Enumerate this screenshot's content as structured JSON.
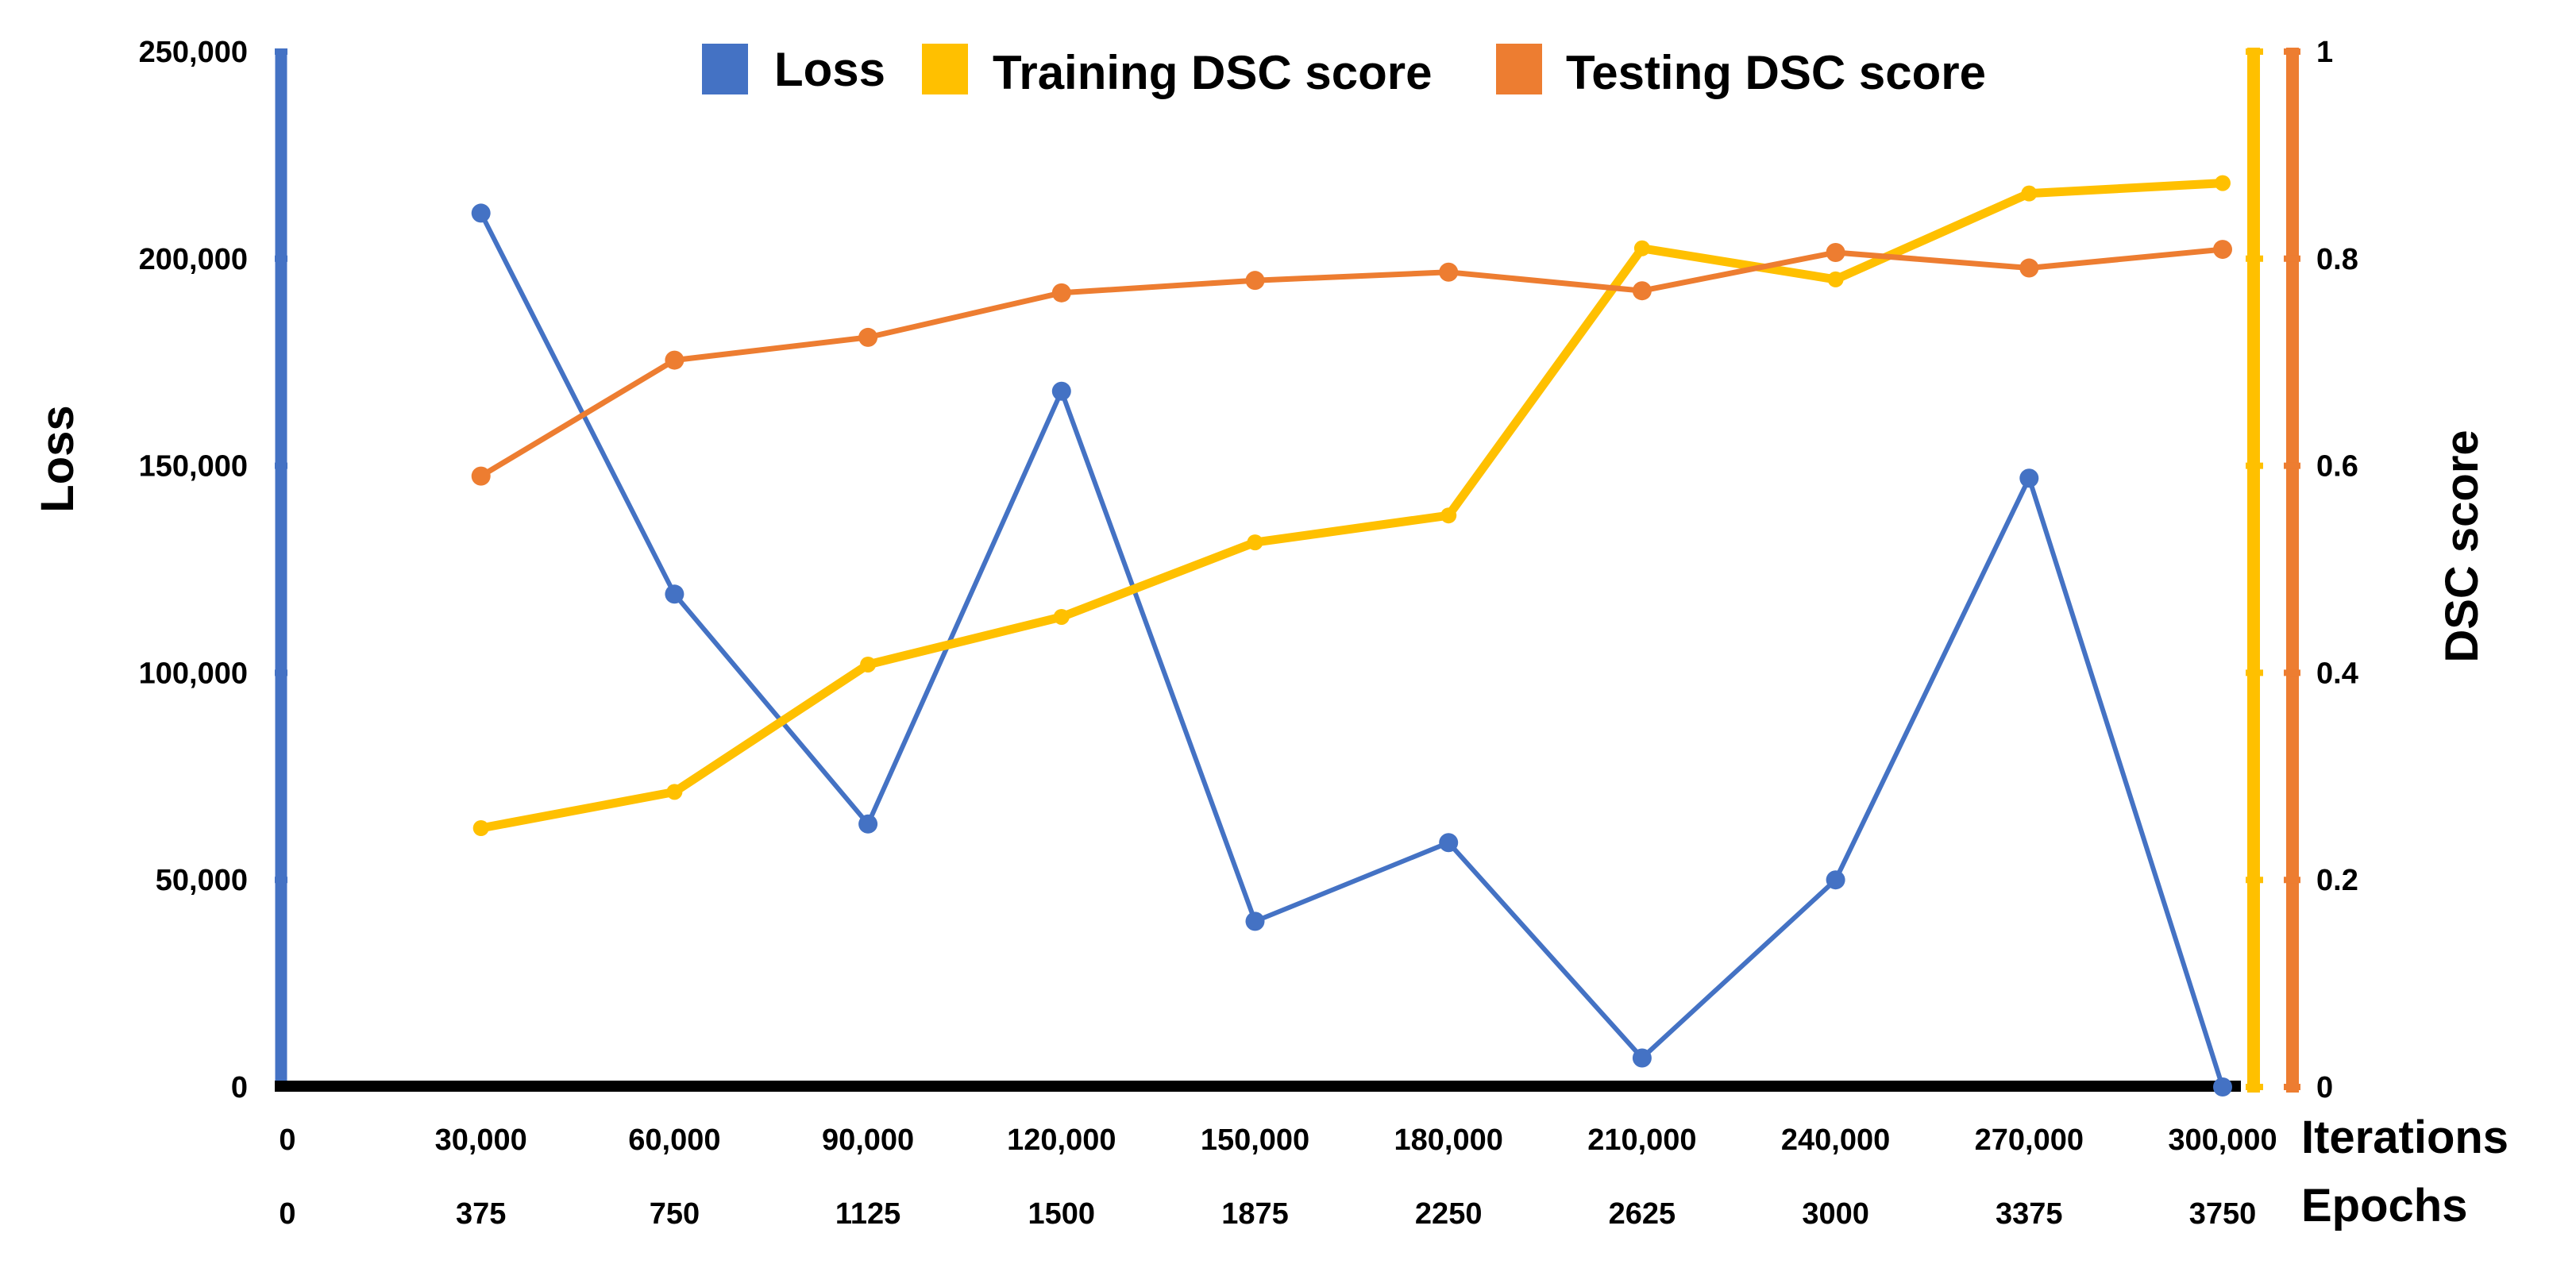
{
  "chart_data": {
    "type": "line",
    "legend_position": "top",
    "x": [
      0,
      30000,
      60000,
      90000,
      120000,
      150000,
      180000,
      210000,
      240000,
      270000,
      300000
    ],
    "x_tick_labels": [
      "0",
      "30,000",
      "60,000",
      "90,000",
      "120,000",
      "150,000",
      "180,000",
      "210,000",
      "240,000",
      "270,000",
      "300,000"
    ],
    "epoch_tick_labels": [
      "0",
      "375",
      "750",
      "1125",
      "1500",
      "1875",
      "2250",
      "2625",
      "3000",
      "3375",
      "3750"
    ],
    "xlabel": "Iterations",
    "xlabel2": "Epochs",
    "ylabel_left": "Loss",
    "ylabel_right": "DSC score",
    "ylim_left": [
      0,
      250000
    ],
    "ylim_right": [
      0,
      1
    ],
    "y_left_ticks": [
      0,
      50000,
      100000,
      150000,
      200000,
      250000
    ],
    "y_left_tick_labels": [
      "0",
      "50,000",
      "100,000",
      "150,000",
      "200,000",
      "250,000"
    ],
    "y_right_ticks": [
      0,
      0.2,
      0.4,
      0.6,
      0.8,
      1
    ],
    "y_right_tick_labels": [
      "0",
      "0.2",
      "0.4",
      "0.6",
      "0.8",
      "1"
    ],
    "series": [
      {
        "name": "Loss",
        "axis": "left",
        "color": "#4472C4",
        "x": [
          30000,
          60000,
          90000,
          120000,
          150000,
          180000,
          210000,
          240000,
          270000,
          300000
        ],
        "values": [
          211000,
          119000,
          63500,
          168000,
          40000,
          59000,
          7000,
          50000,
          147000,
          0
        ]
      },
      {
        "name": "Training DSC score",
        "axis": "right",
        "color": "#FFC000",
        "x": [
          30000,
          60000,
          90000,
          120000,
          150000,
          180000,
          210000,
          240000,
          270000,
          300000
        ],
        "values": [
          0.25,
          0.285,
          0.408,
          0.454,
          0.526,
          0.552,
          0.81,
          0.78,
          0.863,
          0.873
        ]
      },
      {
        "name": "Testing DSC score",
        "axis": "right",
        "color": "#ED7D31",
        "x": [
          30000,
          60000,
          90000,
          120000,
          150000,
          180000,
          210000,
          240000,
          270000,
          300000
        ],
        "values": [
          0.59,
          0.702,
          0.724,
          0.767,
          0.779,
          0.787,
          0.769,
          0.806,
          0.791,
          0.809
        ]
      }
    ]
  }
}
